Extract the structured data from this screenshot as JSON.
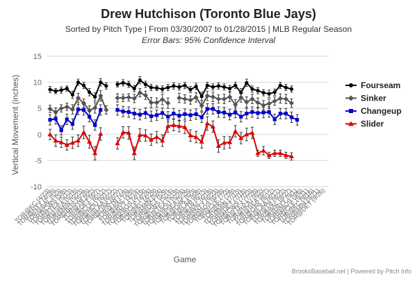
{
  "chart_data": {
    "type": "line",
    "title": "Drew Hutchison (Toronto Blue Jays)",
    "subtitle": "Sorted by Pitch Type | From 03/30/2007 to 01/28/2015 | MLB Regular Season",
    "subtitle2": "Error Bars: 95% Confidence Interval",
    "xlabel": "Game",
    "ylabel": "Vertical Movement (inches)",
    "ylim": [
      -10,
      15
    ],
    "yticks": [
      -10,
      -5,
      0,
      5,
      10,
      15
    ],
    "grid": true,
    "legend_position": "right",
    "credit": "BrooksBaseball.net | Powered by Pitch Info",
    "categories": [
      "TOR@KC (4/23)",
      "TOR@NYY (4/28)",
      "TOR@BAL (5/3)",
      "TOR@CWS (5/8)",
      "TOR@TEX (5/13)",
      "TOR@SEA (5/18)",
      "TOR@MIN (5/23)",
      "TOR@BOS (5/28)",
      "TOR@TB (6/2)",
      "TOR@DET (6/7)",
      "TOR@CLE (6/12)",
      "TOR@HOU (6/17)",
      "TOR@LAA (6/22)",
      "TOR@OAK (6/27)",
      "TOR@TB (4/4)",
      "TOR@BAL (4/9)",
      "TOR@NYY (4/14)",
      "TOR@BOS (4/19)",
      "TOR@CLE (4/24)",
      "TOR@KC (4/29)",
      "TOR@MIN (5/4)",
      "TOR@DET (5/9)",
      "TOR@CWS (5/14)",
      "TOR@TEX (5/19)",
      "TOR@HOU (5/24)",
      "TOR@SEA (5/29)",
      "TOR@OAK (6/3)",
      "TOR@LAA (6/8)",
      "TOR@TB (6/13)",
      "TOR@BAL (6/18)",
      "TOR@NYY (6/23)",
      "TOR@BOS (6/28)",
      "TOR@CLE (7/3)",
      "TOR@KC (7/8)",
      "TOR@MIN (7/13)",
      "TOR@DET (7/18)",
      "TOR@CWS (7/23)",
      "TOR@TEX (7/28)",
      "TOR@HOU (8/2)",
      "TOR@SEA (8/7)",
      "TOR@OAK (8/12)",
      "TOR@LAA (8/17)",
      "TOR@TB (8/22)",
      "TOR@BAL (8/27)",
      "TOR@NYY (9/1)",
      "TOR@BOS (9/6)",
      "TOR@CLE (9/11)",
      "TOR@KC (9/16)",
      "TOR@MIN (9/21)",
      "TOR@DET (9/26)"
    ],
    "series": [
      {
        "name": "Fourseam",
        "color": "#000000",
        "marker": "circle",
        "values": [
          8.6,
          8.3,
          8.5,
          8.8,
          7.6,
          10.0,
          9.4,
          8.1,
          7.2,
          10.0,
          9.3,
          null,
          9.6,
          9.9,
          9.6,
          8.8,
          10.4,
          9.6,
          9.0,
          8.9,
          8.7,
          9.0,
          9.3,
          9.1,
          9.4,
          8.6,
          9.2,
          7.3,
          9.4,
          9.1,
          9.3,
          9.1,
          8.8,
          9.4,
          8.0,
          9.9,
          8.7,
          8.4,
          8.0,
          7.8,
          8.1,
          9.4,
          9.0,
          8.7,
          null,
          null,
          null,
          null,
          null,
          null
        ],
        "errors": [
          0.6,
          0.5,
          0.6,
          0.5,
          0.7,
          0.6,
          0.6,
          0.7,
          0.8,
          0.7,
          0.6,
          null,
          0.5,
          0.6,
          0.6,
          0.6,
          0.7,
          0.6,
          0.6,
          0.5,
          0.6,
          0.6,
          0.6,
          0.6,
          0.6,
          0.6,
          0.6,
          0.8,
          0.6,
          0.6,
          0.6,
          0.6,
          0.6,
          0.6,
          0.8,
          0.7,
          0.6,
          0.6,
          0.6,
          0.7,
          0.6,
          0.6,
          0.6,
          0.6,
          null,
          null,
          null,
          null,
          null,
          null
        ]
      },
      {
        "name": "Sinker",
        "color": "#555555",
        "marker": "diamond",
        "values": [
          4.9,
          4.3,
          5.0,
          5.3,
          4.8,
          7.0,
          6.0,
          4.6,
          5.1,
          7.4,
          4.7,
          null,
          7.0,
          7.0,
          7.1,
          6.9,
          8.0,
          7.5,
          6.1,
          6.1,
          6.7,
          6.0,
          null,
          7.0,
          6.8,
          6.6,
          7.1,
          5.5,
          7.4,
          7.2,
          6.8,
          6.8,
          7.2,
          5.7,
          7.1,
          6.2,
          6.8,
          6.1,
          5.6,
          5.9,
          6.4,
          6.9,
          6.8,
          6.0,
          null,
          null,
          null,
          null,
          null,
          null
        ],
        "errors": [
          0.7,
          0.8,
          0.7,
          0.7,
          0.9,
          0.9,
          0.8,
          0.9,
          1.0,
          1.0,
          0.8,
          null,
          0.8,
          0.7,
          0.7,
          0.8,
          0.8,
          0.8,
          1.0,
          0.9,
          1.0,
          1.0,
          null,
          0.9,
          0.8,
          0.8,
          0.9,
          1.0,
          0.9,
          0.9,
          0.8,
          0.9,
          0.9,
          1.0,
          0.9,
          1.0,
          0.9,
          0.9,
          0.9,
          0.9,
          0.8,
          0.9,
          0.9,
          0.8,
          null,
          null,
          null,
          null,
          null,
          null
        ]
      },
      {
        "name": "Changeup",
        "color": "#0000cc",
        "marker": "square",
        "values": [
          2.8,
          3.0,
          0.8,
          2.9,
          2.0,
          4.8,
          4.7,
          3.4,
          1.8,
          4.7,
          null,
          null,
          4.7,
          4.4,
          4.3,
          4.0,
          3.8,
          4.1,
          3.5,
          3.7,
          4.1,
          3.4,
          4.0,
          3.6,
          3.9,
          3.7,
          3.9,
          3.3,
          4.9,
          4.9,
          4.3,
          4.2,
          3.8,
          4.2,
          3.4,
          4.0,
          4.3,
          4.1,
          4.2,
          4.3,
          2.9,
          4.0,
          4.0,
          3.3,
          2.8,
          null,
          null,
          null,
          null,
          null
        ],
        "errors": [
          1.0,
          1.0,
          0.9,
          1.0,
          1.0,
          1.0,
          1.0,
          1.0,
          1.0,
          1.0,
          null,
          null,
          1.0,
          1.0,
          1.0,
          1.0,
          1.0,
          1.0,
          1.0,
          1.0,
          1.0,
          1.0,
          1.0,
          1.0,
          1.0,
          1.0,
          1.0,
          1.0,
          1.0,
          1.0,
          1.0,
          1.0,
          1.0,
          1.0,
          1.0,
          1.0,
          1.0,
          1.0,
          1.0,
          1.0,
          1.0,
          1.0,
          1.0,
          1.0,
          1.0,
          null,
          null,
          null,
          null,
          null
        ]
      },
      {
        "name": "Slider",
        "color": "#dd0000",
        "marker": "triangle",
        "values": [
          0.0,
          -1.2,
          -1.5,
          -2.0,
          -1.6,
          -1.2,
          0.4,
          -1.4,
          -3.6,
          0.1,
          null,
          null,
          -1.7,
          0.4,
          0.3,
          -3.6,
          -0.1,
          -0.2,
          -1.0,
          -0.5,
          -1.2,
          1.6,
          1.8,
          1.6,
          1.4,
          -0.2,
          -0.5,
          -1.4,
          2.1,
          1.5,
          -2.2,
          -1.6,
          -1.5,
          0.6,
          -0.7,
          0.0,
          0.3,
          -3.6,
          -3.1,
          -4.0,
          -3.6,
          -3.6,
          -4.0,
          -4.2,
          null,
          null,
          null,
          null,
          null,
          null
        ],
        "errors": [
          1.0,
          1.1,
          1.0,
          1.0,
          1.1,
          1.1,
          1.2,
          1.2,
          1.3,
          1.2,
          null,
          null,
          1.1,
          1.1,
          1.2,
          1.2,
          1.2,
          1.1,
          1.1,
          1.1,
          1.1,
          1.2,
          1.1,
          1.1,
          1.2,
          1.1,
          1.1,
          1.2,
          1.3,
          1.1,
          1.2,
          1.2,
          1.1,
          1.1,
          1.1,
          1.2,
          1.1,
          0.6,
          0.8,
          0.6,
          0.6,
          0.6,
          0.6,
          0.7,
          null,
          null,
          null,
          null,
          null,
          null
        ]
      }
    ]
  }
}
